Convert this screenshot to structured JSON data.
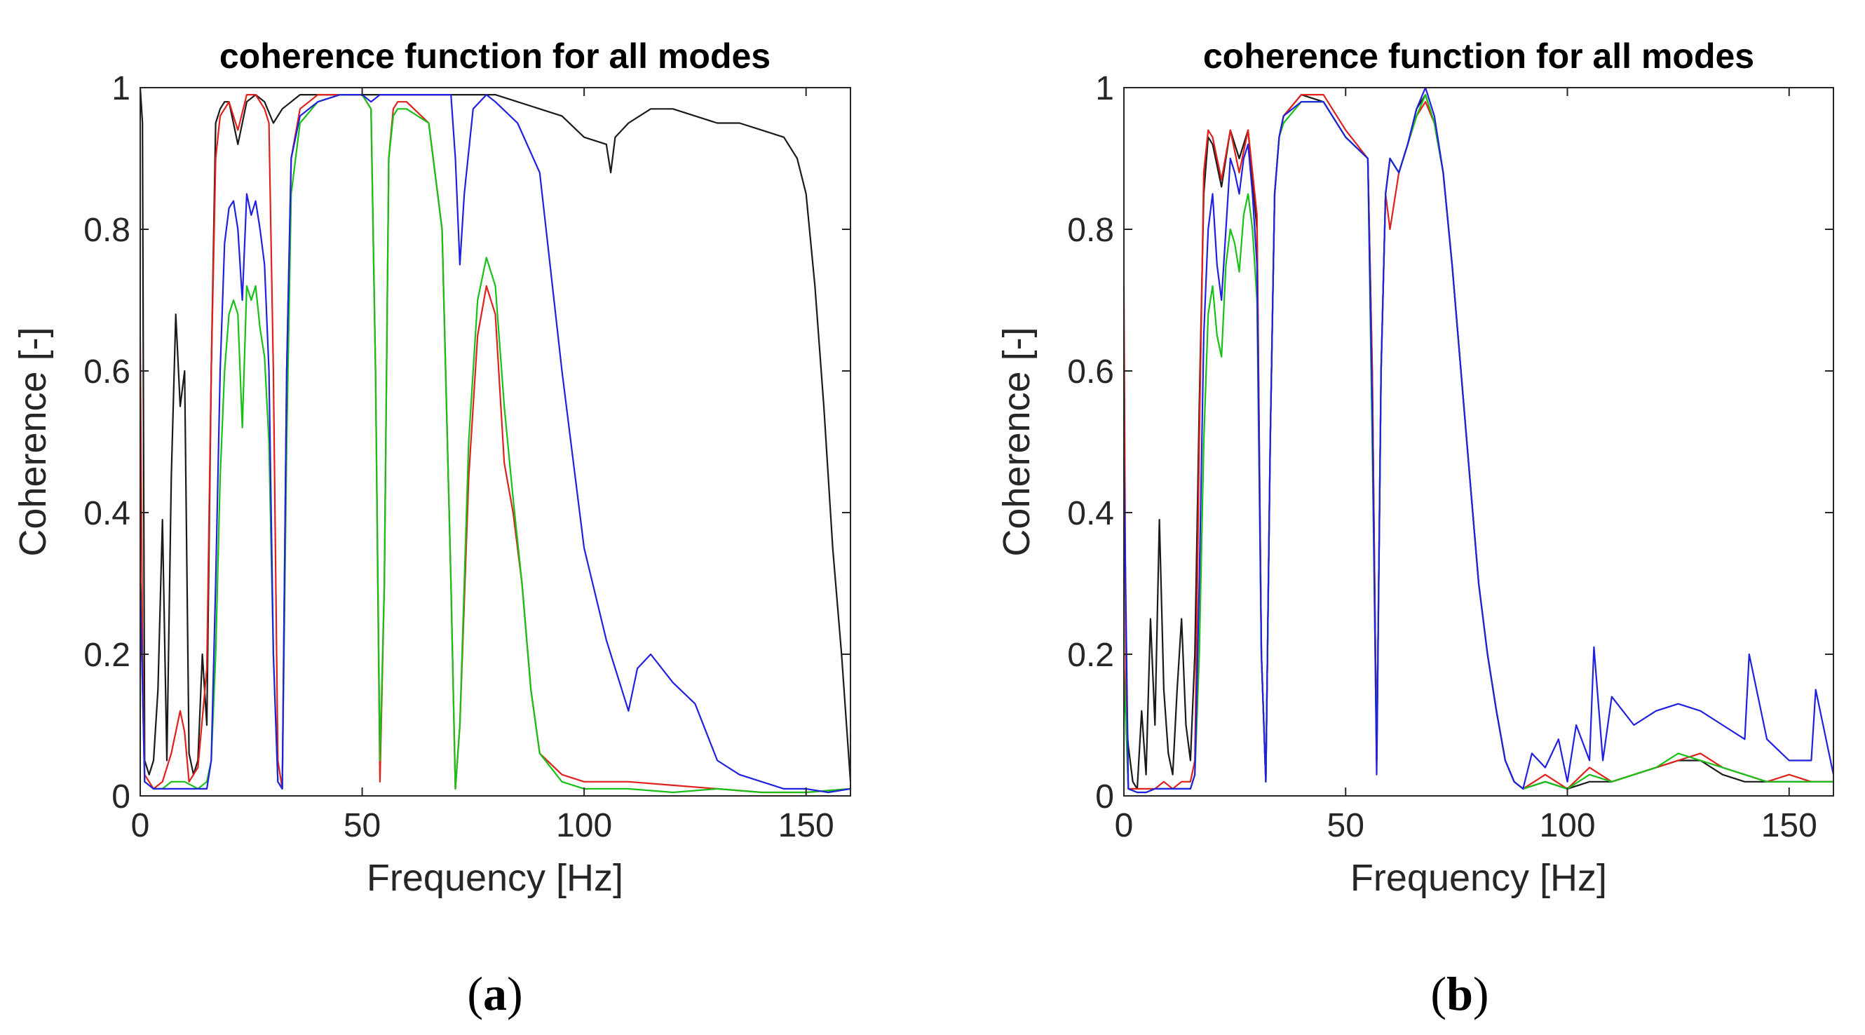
{
  "figure": {
    "captions": [
      "a",
      "b"
    ]
  },
  "chart_data": [
    {
      "type": "line",
      "panel": "a",
      "title": "coherence function for all modes",
      "xlabel": "Frequency [Hz]",
      "ylabel": "Coherence [-]",
      "xlim": [
        0,
        160
      ],
      "ylim": [
        0,
        1
      ],
      "xticks": [
        0,
        50,
        100,
        150
      ],
      "yticks": [
        0,
        0.2,
        0.4,
        0.6,
        0.8,
        1
      ],
      "grid": false,
      "series": [
        {
          "name": "black",
          "color": "#1a1a1a",
          "x": [
            0,
            0.5,
            1,
            2,
            3,
            4,
            5,
            6,
            7,
            8,
            9,
            10,
            11,
            12,
            13,
            14,
            15,
            16,
            17,
            18,
            19,
            20,
            22,
            24,
            26,
            28,
            30,
            32,
            34,
            36,
            40,
            45,
            50,
            55,
            60,
            65,
            70,
            75,
            80,
            85,
            90,
            95,
            100,
            105,
            106,
            107,
            110,
            115,
            120,
            125,
            130,
            135,
            140,
            145,
            148,
            150,
            152,
            154,
            156,
            158,
            160
          ],
          "y": [
            1.0,
            0.95,
            0.05,
            0.03,
            0.05,
            0.15,
            0.39,
            0.05,
            0.45,
            0.68,
            0.55,
            0.6,
            0.06,
            0.03,
            0.05,
            0.2,
            0.1,
            0.6,
            0.95,
            0.97,
            0.98,
            0.98,
            0.92,
            0.98,
            0.99,
            0.98,
            0.95,
            0.97,
            0.98,
            0.99,
            0.99,
            0.99,
            0.99,
            0.99,
            0.99,
            0.99,
            0.99,
            0.99,
            0.99,
            0.98,
            0.97,
            0.96,
            0.93,
            0.92,
            0.88,
            0.93,
            0.95,
            0.97,
            0.97,
            0.96,
            0.95,
            0.95,
            0.94,
            0.93,
            0.9,
            0.85,
            0.72,
            0.55,
            0.35,
            0.2,
            0.02
          ]
        },
        {
          "name": "red",
          "color": "#e0201a",
          "x": [
            0,
            0.5,
            1,
            3,
            5,
            7,
            9,
            10,
            11,
            13,
            15,
            16,
            17,
            18,
            19,
            20,
            22,
            24,
            26,
            28,
            29,
            30,
            31,
            32,
            33,
            34,
            36,
            40,
            45,
            50,
            52,
            53,
            54,
            55,
            56,
            57,
            58,
            60,
            65,
            68,
            70,
            71,
            72,
            74,
            76,
            78,
            80,
            82,
            84,
            86,
            88,
            90,
            95,
            100,
            105,
            110,
            120,
            130,
            140,
            150,
            160
          ],
          "y": [
            0.65,
            0.2,
            0.03,
            0.01,
            0.02,
            0.06,
            0.12,
            0.09,
            0.02,
            0.04,
            0.18,
            0.6,
            0.9,
            0.96,
            0.97,
            0.98,
            0.94,
            0.99,
            0.99,
            0.97,
            0.95,
            0.6,
            0.05,
            0.01,
            0.6,
            0.9,
            0.97,
            0.99,
            0.99,
            0.99,
            0.97,
            0.6,
            0.02,
            0.3,
            0.9,
            0.97,
            0.98,
            0.98,
            0.95,
            0.8,
            0.3,
            0.01,
            0.1,
            0.45,
            0.65,
            0.72,
            0.68,
            0.47,
            0.4,
            0.3,
            0.15,
            0.06,
            0.03,
            0.02,
            0.02,
            0.02,
            0.015,
            0.01,
            0.005,
            0.005,
            0.01
          ]
        },
        {
          "name": "green",
          "color": "#18c018",
          "x": [
            0,
            1,
            3,
            5,
            7,
            10,
            13,
            15,
            16,
            17,
            18,
            19,
            20,
            21,
            22,
            23,
            24,
            25,
            26,
            27,
            28,
            29,
            30,
            31,
            32,
            33,
            34,
            36,
            40,
            45,
            50,
            52,
            53,
            54,
            55,
            56,
            57,
            58,
            60,
            65,
            68,
            70,
            71,
            72,
            74,
            76,
            78,
            80,
            82,
            84,
            86,
            88,
            90,
            95,
            100,
            105,
            110,
            120,
            130,
            140,
            150,
            160
          ],
          "y": [
            0.3,
            0.02,
            0.01,
            0.01,
            0.02,
            0.02,
            0.01,
            0.02,
            0.05,
            0.2,
            0.45,
            0.6,
            0.68,
            0.7,
            0.68,
            0.52,
            0.72,
            0.7,
            0.72,
            0.66,
            0.62,
            0.5,
            0.2,
            0.02,
            0.01,
            0.5,
            0.85,
            0.95,
            0.98,
            0.99,
            0.99,
            0.97,
            0.6,
            0.05,
            0.3,
            0.9,
            0.96,
            0.97,
            0.97,
            0.95,
            0.8,
            0.3,
            0.01,
            0.1,
            0.5,
            0.7,
            0.76,
            0.72,
            0.55,
            0.42,
            0.3,
            0.15,
            0.06,
            0.02,
            0.01,
            0.01,
            0.01,
            0.005,
            0.01,
            0.005,
            0.005,
            0.01
          ]
        },
        {
          "name": "blue",
          "color": "#2020e0",
          "x": [
            0,
            1,
            3,
            5,
            7,
            10,
            13,
            15,
            16,
            17,
            18,
            19,
            20,
            21,
            22,
            23,
            24,
            25,
            26,
            27,
            28,
            29,
            30,
            31,
            32,
            33,
            34,
            36,
            40,
            45,
            50,
            52,
            54,
            56,
            58,
            60,
            62,
            65,
            68,
            70,
            71,
            72,
            73,
            75,
            78,
            80,
            85,
            90,
            95,
            100,
            105,
            110,
            112,
            115,
            120,
            125,
            130,
            135,
            140,
            145,
            150,
            155,
            160
          ],
          "y": [
            0.3,
            0.02,
            0.01,
            0.01,
            0.01,
            0.01,
            0.01,
            0.01,
            0.05,
            0.3,
            0.6,
            0.78,
            0.83,
            0.84,
            0.8,
            0.7,
            0.85,
            0.82,
            0.84,
            0.8,
            0.75,
            0.6,
            0.2,
            0.02,
            0.01,
            0.6,
            0.9,
            0.96,
            0.98,
            0.99,
            0.99,
            0.98,
            0.99,
            0.99,
            0.99,
            0.99,
            0.99,
            0.99,
            0.99,
            0.99,
            0.9,
            0.75,
            0.85,
            0.97,
            0.99,
            0.98,
            0.95,
            0.88,
            0.6,
            0.35,
            0.22,
            0.12,
            0.18,
            0.2,
            0.16,
            0.13,
            0.05,
            0.03,
            0.02,
            0.01,
            0.01,
            0.005,
            0.01
          ]
        }
      ]
    },
    {
      "type": "line",
      "panel": "b",
      "title": "coherence function for all modes",
      "xlabel": "Frequency [Hz]",
      "ylabel": "Coherence [-]",
      "xlim": [
        0,
        160
      ],
      "ylim": [
        0,
        1
      ],
      "xticks": [
        0,
        50,
        100,
        150
      ],
      "yticks": [
        0,
        0.2,
        0.4,
        0.6,
        0.8,
        1
      ],
      "grid": false,
      "series": [
        {
          "name": "black",
          "color": "#1a1a1a",
          "x": [
            0,
            1,
            2,
            3,
            4,
            5,
            6,
            7,
            8,
            9,
            10,
            11,
            12,
            13,
            14,
            15,
            16,
            17,
            18,
            19,
            20,
            22,
            24,
            26,
            28,
            30,
            31,
            32,
            33,
            34,
            35,
            36,
            40,
            45,
            50,
            55,
            56,
            57,
            58,
            59,
            60,
            62,
            64,
            66,
            68,
            70,
            72,
            74,
            76,
            78,
            80,
            82,
            84,
            86,
            88,
            90,
            95,
            100,
            105,
            110,
            115,
            120,
            125,
            130,
            135,
            140,
            145,
            150,
            155,
            160
          ],
          "y": [
            0.15,
            0.07,
            0.02,
            0.01,
            0.12,
            0.03,
            0.25,
            0.1,
            0.39,
            0.15,
            0.06,
            0.03,
            0.15,
            0.25,
            0.1,
            0.05,
            0.2,
            0.55,
            0.85,
            0.93,
            0.92,
            0.86,
            0.94,
            0.9,
            0.94,
            0.8,
            0.2,
            0.02,
            0.5,
            0.85,
            0.93,
            0.96,
            0.99,
            0.98,
            0.93,
            0.9,
            0.6,
            0.05,
            0.6,
            0.85,
            0.9,
            0.88,
            0.92,
            0.97,
            0.99,
            0.95,
            0.88,
            0.75,
            0.6,
            0.45,
            0.3,
            0.2,
            0.12,
            0.05,
            0.02,
            0.01,
            0.02,
            0.01,
            0.02,
            0.02,
            0.03,
            0.04,
            0.05,
            0.05,
            0.03,
            0.02,
            0.02,
            0.02,
            0.02,
            0.02
          ]
        },
        {
          "name": "red",
          "color": "#e0201a",
          "x": [
            0,
            0.5,
            1,
            3,
            5,
            7,
            9,
            11,
            13,
            15,
            16,
            17,
            18,
            19,
            20,
            22,
            24,
            26,
            28,
            30,
            31,
            32,
            33,
            34,
            35,
            36,
            40,
            45,
            50,
            55,
            56,
            57,
            58,
            59,
            60,
            62,
            64,
            66,
            68,
            70,
            72,
            74,
            76,
            78,
            80,
            82,
            84,
            86,
            88,
            90,
            95,
            100,
            105,
            110,
            115,
            120,
            125,
            130,
            135,
            140,
            145,
            150,
            155,
            160
          ],
          "y": [
            0.72,
            0.1,
            0.01,
            0.01,
            0.01,
            0.01,
            0.02,
            0.01,
            0.02,
            0.02,
            0.05,
            0.5,
            0.88,
            0.94,
            0.93,
            0.87,
            0.94,
            0.88,
            0.94,
            0.82,
            0.2,
            0.02,
            0.5,
            0.85,
            0.93,
            0.96,
            0.99,
            0.99,
            0.94,
            0.9,
            0.6,
            0.05,
            0.6,
            0.85,
            0.8,
            0.88,
            0.92,
            0.96,
            0.98,
            0.95,
            0.88,
            0.75,
            0.6,
            0.45,
            0.3,
            0.2,
            0.12,
            0.05,
            0.02,
            0.01,
            0.03,
            0.01,
            0.04,
            0.02,
            0.03,
            0.04,
            0.05,
            0.06,
            0.04,
            0.03,
            0.02,
            0.03,
            0.02,
            0.02
          ]
        },
        {
          "name": "green",
          "color": "#18c018",
          "x": [
            0,
            1,
            3,
            5,
            7,
            9,
            11,
            13,
            15,
            16,
            17,
            18,
            19,
            20,
            21,
            22,
            23,
            24,
            25,
            26,
            27,
            28,
            29,
            30,
            31,
            32,
            33,
            34,
            35,
            36,
            40,
            45,
            50,
            55,
            56,
            57,
            58,
            59,
            60,
            62,
            64,
            66,
            68,
            70,
            72,
            74,
            76,
            78,
            80,
            82,
            84,
            86,
            88,
            90,
            95,
            100,
            105,
            110,
            115,
            120,
            125,
            130,
            135,
            140,
            145,
            150,
            155,
            160
          ],
          "y": [
            0.18,
            0.01,
            0.005,
            0.005,
            0.01,
            0.01,
            0.01,
            0.01,
            0.01,
            0.03,
            0.2,
            0.5,
            0.68,
            0.72,
            0.65,
            0.62,
            0.75,
            0.8,
            0.78,
            0.74,
            0.82,
            0.85,
            0.8,
            0.7,
            0.2,
            0.02,
            0.5,
            0.85,
            0.93,
            0.95,
            0.98,
            0.98,
            0.93,
            0.9,
            0.5,
            0.05,
            0.6,
            0.85,
            0.9,
            0.88,
            0.92,
            0.96,
            0.99,
            0.95,
            0.88,
            0.75,
            0.6,
            0.45,
            0.3,
            0.2,
            0.12,
            0.05,
            0.02,
            0.01,
            0.02,
            0.01,
            0.03,
            0.02,
            0.03,
            0.04,
            0.06,
            0.05,
            0.04,
            0.03,
            0.02,
            0.02,
            0.02,
            0.02
          ]
        },
        {
          "name": "blue",
          "color": "#2020e0",
          "x": [
            0,
            1,
            3,
            5,
            7,
            9,
            11,
            13,
            15,
            16,
            17,
            18,
            19,
            20,
            21,
            22,
            23,
            24,
            25,
            26,
            27,
            28,
            29,
            30,
            31,
            32,
            33,
            34,
            35,
            36,
            40,
            45,
            50,
            55,
            56,
            57,
            58,
            59,
            60,
            62,
            64,
            66,
            68,
            70,
            72,
            74,
            76,
            78,
            80,
            82,
            84,
            86,
            88,
            90,
            92,
            95,
            98,
            100,
            102,
            105,
            106,
            108,
            110,
            115,
            120,
            125,
            130,
            135,
            140,
            141,
            145,
            150,
            155,
            156,
            160
          ],
          "y": [
            0.48,
            0.01,
            0.005,
            0.005,
            0.01,
            0.01,
            0.01,
            0.01,
            0.01,
            0.03,
            0.3,
            0.65,
            0.8,
            0.85,
            0.75,
            0.7,
            0.8,
            0.9,
            0.88,
            0.85,
            0.9,
            0.92,
            0.85,
            0.75,
            0.2,
            0.02,
            0.5,
            0.85,
            0.93,
            0.96,
            0.98,
            0.98,
            0.93,
            0.9,
            0.55,
            0.03,
            0.6,
            0.85,
            0.9,
            0.88,
            0.92,
            0.97,
            1.0,
            0.96,
            0.88,
            0.75,
            0.6,
            0.45,
            0.3,
            0.2,
            0.12,
            0.05,
            0.02,
            0.01,
            0.06,
            0.04,
            0.08,
            0.02,
            0.1,
            0.05,
            0.21,
            0.05,
            0.14,
            0.1,
            0.12,
            0.13,
            0.12,
            0.1,
            0.08,
            0.2,
            0.08,
            0.05,
            0.05,
            0.15,
            0.03
          ]
        }
      ]
    }
  ]
}
